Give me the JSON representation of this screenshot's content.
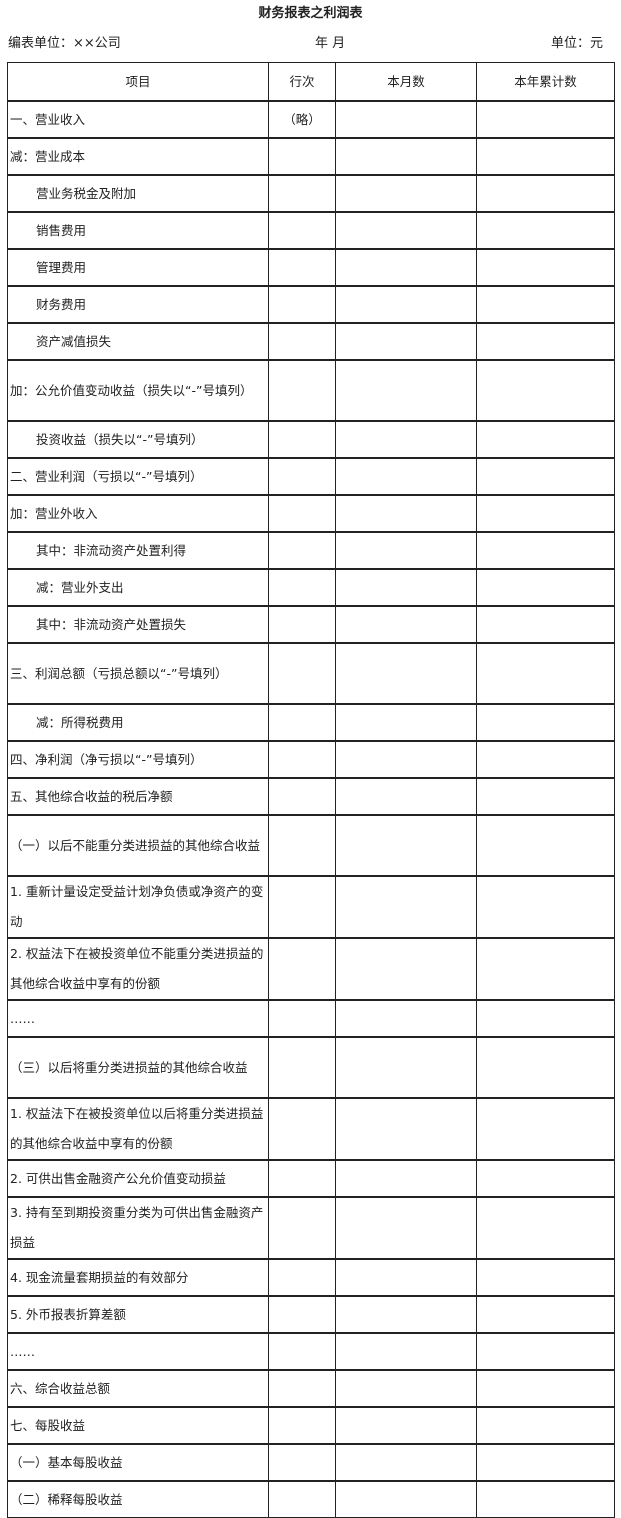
{
  "title": "财务报表之利润表",
  "header": {
    "unit_label": "编表单位：××公司",
    "period": "年 月",
    "currency": "单位：元"
  },
  "columns": [
    "项目",
    "行次",
    "本月数",
    "本年累计数"
  ],
  "rows": [
    {
      "item": "一、营业收入",
      "line": "（略）"
    },
    {
      "item": "减：营业成本",
      "line": ""
    },
    {
      "item": "营业务税金及附加",
      "indent": true
    },
    {
      "item": "销售费用",
      "indent": true
    },
    {
      "item": "管理费用",
      "indent": true
    },
    {
      "item": "财务费用",
      "indent": true
    },
    {
      "item": "资产减值损失",
      "indent": true
    },
    {
      "item": "加：公允价值变动收益（损失以“-”号填列）",
      "two": true
    },
    {
      "item": "投资收益（损失以“-”号填列）",
      "indent": true
    },
    {
      "item": "二、营业利润（亏损以“-”号填列）"
    },
    {
      "item": "加：营业外收入"
    },
    {
      "item": "其中：非流动资产处置利得",
      "indent": true
    },
    {
      "item": "减：营业外支出",
      "indent": true
    },
    {
      "item": "其中：非流动资产处置损失",
      "indent": true
    },
    {
      "item": "三、利润总额（亏损总额以“-”号填列）",
      "two": true
    },
    {
      "item": "减：所得税费用",
      "indent": true
    },
    {
      "item": "四、净利润（净亏损以“-”号填列）"
    },
    {
      "item": "五、其他综合收益的税后净额"
    },
    {
      "item": "（一）以后不能重分类进损益的其他综合收益",
      "two": true
    },
    {
      "item": "1. 重新计量设定受益计划净负债或净资产的变动",
      "two": true
    },
    {
      "item": "2. 权益法下在被投资单位不能重分类进损益的其他综合收益中享有的份额",
      "two": true
    },
    {
      "item": "……"
    },
    {
      "item": "（三）以后将重分类进损益的其他综合收益",
      "two": true
    },
    {
      "item": "1. 权益法下在被投资单位以后将重分类进损益的其他综合收益中享有的份额",
      "two": true
    },
    {
      "item": "2. 可供出售金融资产公允价值变动损益"
    },
    {
      "item": "3. 持有至到期投资重分类为可供出售金融资产损益",
      "two": true
    },
    {
      "item": "4. 现金流量套期损益的有效部分"
    },
    {
      "item": "5. 外币报表折算差额"
    },
    {
      "item": "……"
    },
    {
      "item": "六、综合收益总额"
    },
    {
      "item": "七、每股收益"
    },
    {
      "item": "（一）基本每股收益"
    },
    {
      "item": "（二）稀释每股收益"
    }
  ]
}
